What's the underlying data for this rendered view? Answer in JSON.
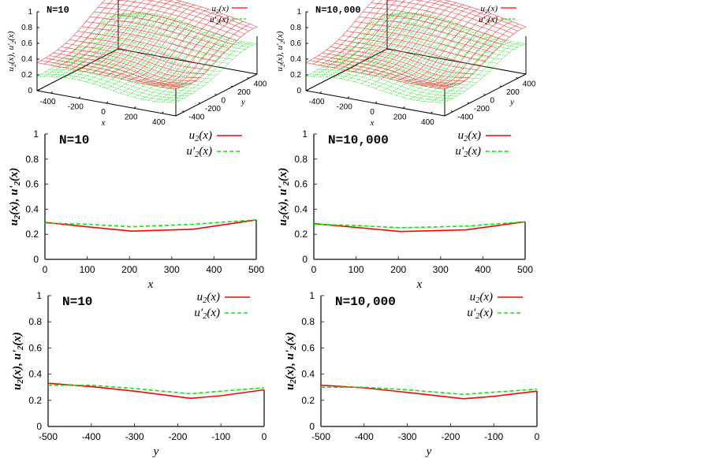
{
  "chart_data": [
    {
      "id": "surface-n10",
      "type": "surface3d",
      "title": "N=10",
      "xlabel": "x",
      "ylabel": "y",
      "zlabel": "u2(x), u'2(x)",
      "x_ticks": [
        "-400",
        "-200",
        "0",
        "200",
        "400"
      ],
      "y_ticks": [
        "-400",
        "-200",
        "0",
        "200",
        "400"
      ],
      "z_ticks": [
        "0",
        "0.2",
        "0.4",
        "0.6",
        "0.8",
        "1"
      ],
      "xlim": [
        -500,
        500
      ],
      "ylim": [
        -500,
        500
      ],
      "zlim": [
        0,
        1
      ],
      "legend": [
        {
          "label": "u2(x)",
          "style": "solid",
          "color": "#ff0000"
        },
        {
          "label": "u'2(x)",
          "style": "dashed",
          "color": "#00ee00"
        }
      ],
      "legend_position": "top-right"
    },
    {
      "id": "surface-n10000",
      "type": "surface3d",
      "title": "N=10,000",
      "xlabel": "x",
      "ylabel": "y",
      "zlabel": "u2(x), u'2(x)",
      "x_ticks": [
        "-400",
        "-200",
        "0",
        "200",
        "400"
      ],
      "y_ticks": [
        "-400",
        "-200",
        "0",
        "200",
        "400"
      ],
      "z_ticks": [
        "0",
        "0.2",
        "0.4",
        "0.6",
        "0.8",
        "1"
      ],
      "xlim": [
        -500,
        500
      ],
      "ylim": [
        -500,
        500
      ],
      "zlim": [
        0,
        1
      ],
      "legend": [
        {
          "label": "u2(x)",
          "style": "solid",
          "color": "#ff0000"
        },
        {
          "label": "u'2(x)",
          "style": "dashed",
          "color": "#00ee00"
        }
      ],
      "legend_position": "top-right"
    },
    {
      "id": "xslice-n10",
      "type": "line",
      "title": "N=10",
      "xlabel": "x",
      "ylabel": "u2(x), u'2(x)",
      "xlim": [
        0,
        500
      ],
      "ylim": [
        0,
        1
      ],
      "x_ticks": [
        "0",
        "100",
        "200",
        "300",
        "400",
        "500"
      ],
      "y_ticks": [
        "0",
        "0.2",
        "0.4",
        "0.6",
        "0.8",
        "1"
      ],
      "legend_position": "top-right",
      "series": [
        {
          "name": "u2(x)",
          "style": "solid",
          "color": "#ff0000",
          "x": [
            0,
            100,
            205,
            350,
            500
          ],
          "y": [
            0.295,
            0.26,
            0.225,
            0.24,
            0.315
          ]
        },
        {
          "name": "u'2(x)",
          "style": "dashed",
          "color": "#00ee00",
          "x": [
            0,
            100,
            205,
            350,
            500
          ],
          "y": [
            0.29,
            0.28,
            0.26,
            0.28,
            0.315
          ]
        }
      ]
    },
    {
      "id": "xslice-n10000",
      "type": "line",
      "title": "N=10,000",
      "xlabel": "x",
      "ylabel": "u2(x), u'2(x)",
      "xlim": [
        0,
        500
      ],
      "ylim": [
        0,
        1
      ],
      "x_ticks": [
        "0",
        "100",
        "200",
        "300",
        "400",
        "500"
      ],
      "y_ticks": [
        "0",
        "0.2",
        "0.4",
        "0.6",
        "0.8",
        "1"
      ],
      "legend_position": "top-right",
      "series": [
        {
          "name": "u2(x)",
          "style": "solid",
          "color": "#ff0000",
          "x": [
            0,
            100,
            205,
            360,
            500
          ],
          "y": [
            0.285,
            0.255,
            0.222,
            0.235,
            0.3
          ]
        },
        {
          "name": "u'2(x)",
          "style": "dashed",
          "color": "#00ee00",
          "x": [
            0,
            100,
            205,
            360,
            500
          ],
          "y": [
            0.28,
            0.27,
            0.252,
            0.265,
            0.3
          ]
        }
      ]
    },
    {
      "id": "yslice-n10",
      "type": "line",
      "title": "N=10",
      "xlabel": "y",
      "ylabel": "u2(x), u'2(x)",
      "xlim": [
        -500,
        0
      ],
      "ylim": [
        0,
        1
      ],
      "x_ticks": [
        "-500",
        "-400",
        "-300",
        "-200",
        "-100",
        "0"
      ],
      "y_ticks": [
        "0",
        "0.2",
        "0.4",
        "0.6",
        "0.8",
        "1"
      ],
      "legend_position": "top-right",
      "series": [
        {
          "name": "u2(x)",
          "style": "solid",
          "color": "#ff0000",
          "x": [
            -500,
            -400,
            -300,
            -170,
            -100,
            0
          ],
          "y": [
            0.33,
            0.305,
            0.27,
            0.215,
            0.235,
            0.28
          ]
        },
        {
          "name": "u'2(x)",
          "style": "dashed",
          "color": "#00ee00",
          "x": [
            -500,
            -400,
            -300,
            -170,
            -100,
            0
          ],
          "y": [
            0.315,
            0.315,
            0.29,
            0.25,
            0.27,
            0.295
          ]
        }
      ]
    },
    {
      "id": "yslice-n10000",
      "type": "line",
      "title": "N=10,000",
      "xlabel": "y",
      "ylabel": "u2(x), u'2(x)",
      "xlim": [
        -500,
        0
      ],
      "ylim": [
        0,
        1
      ],
      "x_ticks": [
        "-500",
        "-400",
        "-300",
        "-200",
        "-100",
        "0"
      ],
      "y_ticks": [
        "0",
        "0.2",
        "0.4",
        "0.6",
        "0.8",
        "1"
      ],
      "legend_position": "top-right",
      "series": [
        {
          "name": "u2(x)",
          "style": "solid",
          "color": "#ff0000",
          "x": [
            -500,
            -400,
            -300,
            -170,
            -100,
            0
          ],
          "y": [
            0.315,
            0.295,
            0.26,
            0.212,
            0.23,
            0.27
          ]
        },
        {
          "name": "u'2(x)",
          "style": "dashed",
          "color": "#00ee00",
          "x": [
            -500,
            -400,
            -300,
            -170,
            -100,
            0
          ],
          "y": [
            0.3,
            0.3,
            0.28,
            0.245,
            0.262,
            0.285
          ]
        }
      ]
    }
  ]
}
